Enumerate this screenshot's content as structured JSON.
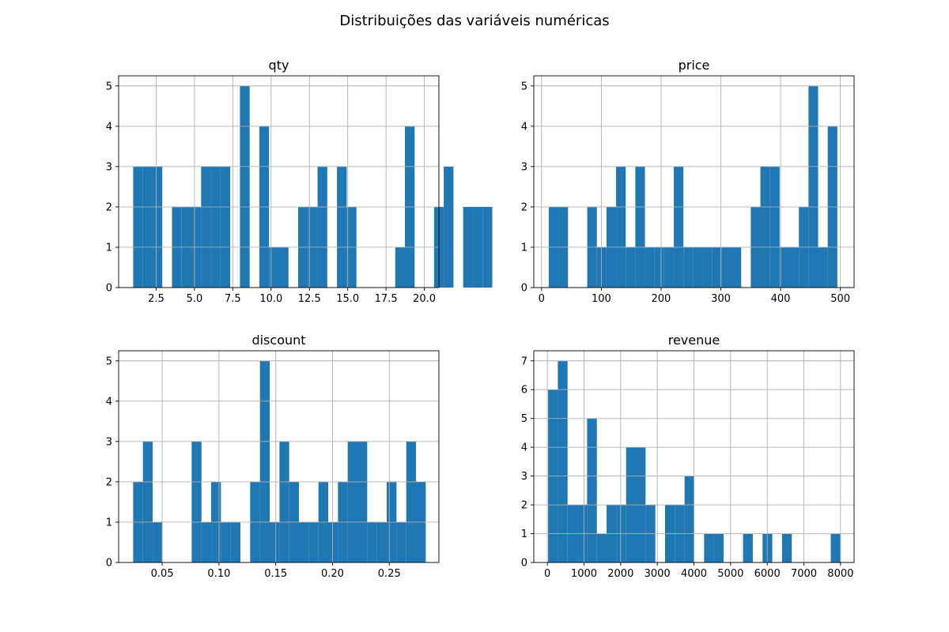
{
  "figure": {
    "title": "Distribuições das variáveis numéricas",
    "bar_color": "#1f77b4",
    "grid_color": "#b0b0b0"
  },
  "chart_data": [
    {
      "type": "bar",
      "title": "qty",
      "xlabel": "",
      "ylabel": "",
      "grid": true,
      "xlim": [
        0.05,
        20.95
      ],
      "ylim": [
        0,
        5.25
      ],
      "xticks": [
        2.5,
        5.0,
        7.5,
        10.0,
        12.5,
        15.0,
        17.5,
        20.0
      ],
      "xtick_labels": [
        "2.5",
        "5.0",
        "7.5",
        "10.0",
        "12.5",
        "15.0",
        "17.5",
        "20.0"
      ],
      "yticks": [
        0,
        1,
        2,
        3,
        4,
        5
      ],
      "ytick_labels": [
        "0",
        "1",
        "2",
        "3",
        "4",
        "5"
      ],
      "bin_start": 1,
      "bin_width": 0.6333,
      "counts": [
        3,
        3,
        3,
        0,
        2,
        2,
        2,
        3,
        3,
        3,
        0,
        5,
        0,
        4,
        1,
        1,
        0,
        2,
        2,
        3,
        0,
        3,
        2,
        0,
        0,
        0,
        0,
        1,
        4,
        0,
        0,
        2,
        3,
        0,
        2,
        2,
        2
      ]
    },
    {
      "type": "bar",
      "title": "price",
      "xlabel": "",
      "ylabel": "",
      "grid": true,
      "xlim": [
        -13,
        523
      ],
      "ylim": [
        0,
        5.25
      ],
      "xticks": [
        0,
        100,
        200,
        300,
        400,
        500
      ],
      "xtick_labels": [
        "0",
        "100",
        "200",
        "300",
        "400",
        "500"
      ],
      "yticks": [
        0,
        1,
        2,
        3,
        4,
        5
      ],
      "ytick_labels": [
        "0",
        "1",
        "2",
        "3",
        "4",
        "5"
      ],
      "bin_start": 12,
      "bin_width": 16.1,
      "counts": [
        2,
        2,
        0,
        0,
        2,
        1,
        2,
        3,
        1,
        3,
        1,
        1,
        1,
        3,
        1,
        1,
        1,
        1,
        1,
        1,
        0,
        2,
        3,
        3,
        1,
        1,
        2,
        5,
        1,
        4
      ]
    },
    {
      "type": "bar",
      "title": "discount",
      "xlabel": "",
      "ylabel": "",
      "grid": true,
      "xlim": [
        0.0116,
        0.2937
      ],
      "ylim": [
        0,
        5.25
      ],
      "xticks": [
        0.05,
        0.1,
        0.15,
        0.2,
        0.25
      ],
      "xtick_labels": [
        "0.05",
        "0.10",
        "0.15",
        "0.20",
        "0.25"
      ],
      "yticks": [
        0,
        1,
        2,
        3,
        4,
        5
      ],
      "ytick_labels": [
        "0",
        "1",
        "2",
        "3",
        "4",
        "5"
      ],
      "bin_start": 0.0244,
      "bin_width": 0.00859,
      "counts": [
        2,
        3,
        1,
        0,
        0,
        0,
        3,
        1,
        2,
        1,
        1,
        0,
        2,
        5,
        1,
        3,
        2,
        1,
        1,
        2,
        1,
        2,
        3,
        3,
        1,
        1,
        2,
        1,
        3,
        2
      ]
    },
    {
      "type": "bar",
      "title": "revenue",
      "xlabel": "",
      "ylabel": "",
      "grid": true,
      "xlim": [
        -370,
        8370
      ],
      "ylim": [
        0,
        7.35
      ],
      "xticks": [
        0,
        1000,
        2000,
        3000,
        4000,
        5000,
        6000,
        7000,
        8000
      ],
      "xtick_labels": [
        "0",
        "1000",
        "2000",
        "3000",
        "4000",
        "5000",
        "6000",
        "7000",
        "8000"
      ],
      "yticks": [
        0,
        1,
        2,
        3,
        4,
        5,
        6,
        7
      ],
      "ytick_labels": [
        "0",
        "1",
        "2",
        "3",
        "4",
        "5",
        "6",
        "7"
      ],
      "bin_start": 20,
      "bin_width": 266,
      "counts": [
        6,
        7,
        2,
        2,
        5,
        1,
        2,
        2,
        4,
        4,
        2,
        0,
        2,
        2,
        3,
        0,
        1,
        1,
        0,
        0,
        1,
        0,
        1,
        0,
        1,
        0,
        0,
        0,
        0,
        1
      ]
    }
  ]
}
